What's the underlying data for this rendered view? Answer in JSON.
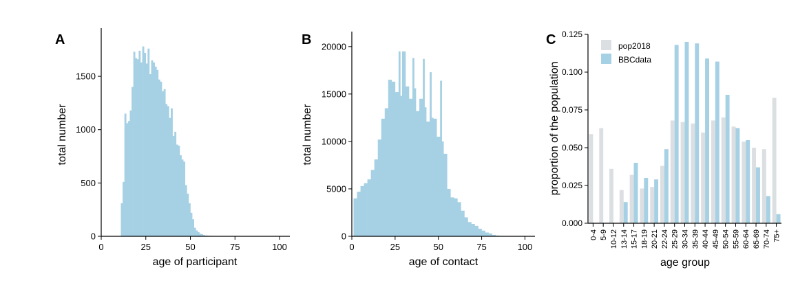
{
  "colors": {
    "bbc": "#a6d0e4",
    "pop": "#dcdfe2",
    "axis": "#000000"
  },
  "chart_data": [
    {
      "panel_label": "A",
      "type": "bar",
      "xlabel": "age of participant",
      "ylabel": "total number",
      "xlim": [
        0,
        105
      ],
      "ylim": [
        0,
        1900
      ],
      "xticks": [
        "0",
        "25",
        "50",
        "75",
        "100"
      ],
      "yticks": [
        "0",
        "500",
        "1000",
        "1500"
      ],
      "bin_start": 11,
      "bin_width": 1,
      "values": [
        310,
        510,
        1150,
        1060,
        1080,
        1180,
        1400,
        1730,
        1670,
        1660,
        1740,
        1630,
        1780,
        1720,
        1620,
        1760,
        1520,
        1650,
        1630,
        1590,
        1560,
        1470,
        1450,
        1360,
        1380,
        1240,
        1220,
        1110,
        1200,
        940,
        980,
        860,
        850,
        760,
        720,
        700,
        480,
        400,
        310,
        220,
        160,
        80,
        55,
        40,
        25,
        20,
        12,
        8,
        6,
        5,
        4,
        4,
        3,
        3,
        2,
        2,
        2,
        2,
        1,
        1,
        1,
        1,
        1,
        1,
        1,
        1,
        1,
        1,
        1,
        1,
        1,
        1,
        1,
        1,
        1,
        1,
        1,
        1,
        1,
        1,
        1,
        1,
        1,
        1,
        1,
        1,
        1,
        1,
        1,
        1
      ]
    },
    {
      "panel_label": "B",
      "type": "bar",
      "xlabel": "age of contact",
      "ylabel": "total number",
      "xlim": [
        0,
        105
      ],
      "ylim": [
        0,
        21000
      ],
      "xticks": [
        "0",
        "25",
        "50",
        "75",
        "100"
      ],
      "yticks": [
        "0",
        "5000",
        "10000",
        "15000",
        "20000"
      ],
      "bin_start": 1,
      "bin_width": 2,
      "values": [
        4000,
        4700,
        5300,
        5600,
        6000,
        7000,
        8100,
        10200,
        12400,
        13500,
        16500,
        16300,
        15200,
        14800,
        19500,
        15800,
        14500,
        15600,
        13200,
        14500,
        13600,
        12100,
        12500,
        12400,
        10500,
        10000,
        8700,
        5000,
        4100,
        4000,
        3600,
        2700,
        2000,
        1500,
        1300,
        1100,
        800,
        600,
        400,
        300,
        150,
        80,
        40,
        20,
        10,
        5,
        0,
        0,
        0,
        0,
        0,
        0
      ],
      "spikes": [
        {
          "x": 27.5,
          "value": 19500
        },
        {
          "x": 29.5,
          "value": 16500
        },
        {
          "x": 35.5,
          "value": 18800
        },
        {
          "x": 41.5,
          "value": 18700
        },
        {
          "x": 45.5,
          "value": 17300
        },
        {
          "x": 51.5,
          "value": 16400
        }
      ]
    },
    {
      "panel_label": "C",
      "type": "bar",
      "xlabel": "age group",
      "ylabel": "proportion of the population",
      "ylim": [
        0,
        0.125
      ],
      "yticks": [
        "0.000",
        "0.025",
        "0.050",
        "0.075",
        "0.100",
        "0.125"
      ],
      "categories": [
        "0-4",
        "5-9",
        "10-12",
        "13-14",
        "15-17",
        "18-19",
        "20-21",
        "22-24",
        "25-29",
        "30-34",
        "35-39",
        "40-44",
        "45-49",
        "50-54",
        "55-59",
        "60-64",
        "65-69",
        "70-74",
        "75+"
      ],
      "legend_position": "top-left",
      "series": [
        {
          "name": "pop2018",
          "values": [
            0.059,
            0.063,
            0.036,
            0.022,
            0.032,
            0.023,
            0.024,
            0.038,
            0.068,
            0.067,
            0.066,
            0.06,
            0.068,
            0.07,
            0.064,
            0.054,
            0.05,
            0.049,
            0.083
          ]
        },
        {
          "name": "BBCdata",
          "values": [
            0.0,
            0.0,
            0.0,
            0.014,
            0.04,
            0.03,
            0.029,
            0.049,
            0.118,
            0.12,
            0.119,
            0.109,
            0.107,
            0.085,
            0.063,
            0.055,
            0.037,
            0.018,
            0.006
          ]
        }
      ]
    }
  ]
}
